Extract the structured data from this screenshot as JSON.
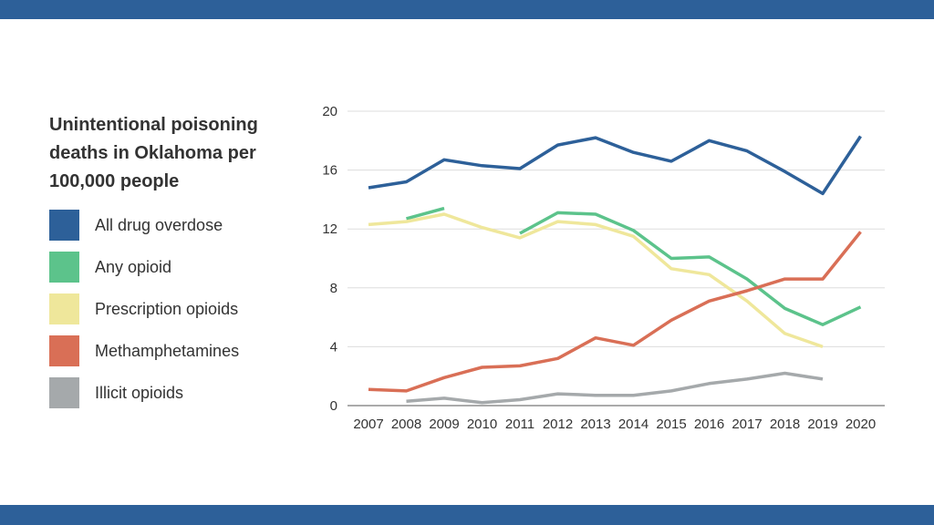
{
  "chart_data": {
    "type": "line",
    "title": "Unintentional poisoning deaths in Oklahoma per 100,000 people",
    "xlabel": "",
    "ylabel": "",
    "categories": [
      "2007",
      "2008",
      "2009",
      "2010",
      "2011",
      "2012",
      "2013",
      "2014",
      "2015",
      "2016",
      "2017",
      "2018",
      "2019",
      "2020"
    ],
    "ylim": [
      0,
      20
    ],
    "yticks": [
      "0",
      "4",
      "8",
      "12",
      "16",
      "20"
    ],
    "series": [
      {
        "name": "All drug overdose",
        "color": "#2d6099",
        "values": [
          14.8,
          15.2,
          16.7,
          16.3,
          16.1,
          17.7,
          18.2,
          17.2,
          16.6,
          18.0,
          17.3,
          15.9,
          14.4,
          18.3
        ]
      },
      {
        "name": "Any opioid",
        "color": "#5cc38b",
        "values": [
          null,
          12.7,
          13.4,
          null,
          11.7,
          13.1,
          13.0,
          11.9,
          10.0,
          10.1,
          8.6,
          6.6,
          5.5,
          6.7
        ]
      },
      {
        "name": "Prescription opioids",
        "color": "#efe79b",
        "values": [
          12.3,
          12.5,
          13.0,
          12.1,
          11.4,
          12.5,
          12.3,
          11.5,
          9.3,
          8.9,
          7.1,
          4.9,
          4.0,
          null
        ]
      },
      {
        "name": "Methamphetamines",
        "color": "#d96f56",
        "values": [
          1.1,
          1.0,
          1.9,
          2.6,
          2.7,
          3.2,
          4.6,
          4.1,
          5.8,
          7.1,
          7.8,
          8.6,
          8.6,
          11.8
        ]
      },
      {
        "name": "Illicit opioids",
        "color": "#a5a9ab",
        "values": [
          null,
          0.3,
          0.5,
          0.2,
          0.4,
          0.8,
          0.7,
          0.7,
          1.0,
          1.5,
          1.8,
          2.2,
          1.8,
          null
        ]
      }
    ],
    "grid": true,
    "legend_position": "left"
  }
}
